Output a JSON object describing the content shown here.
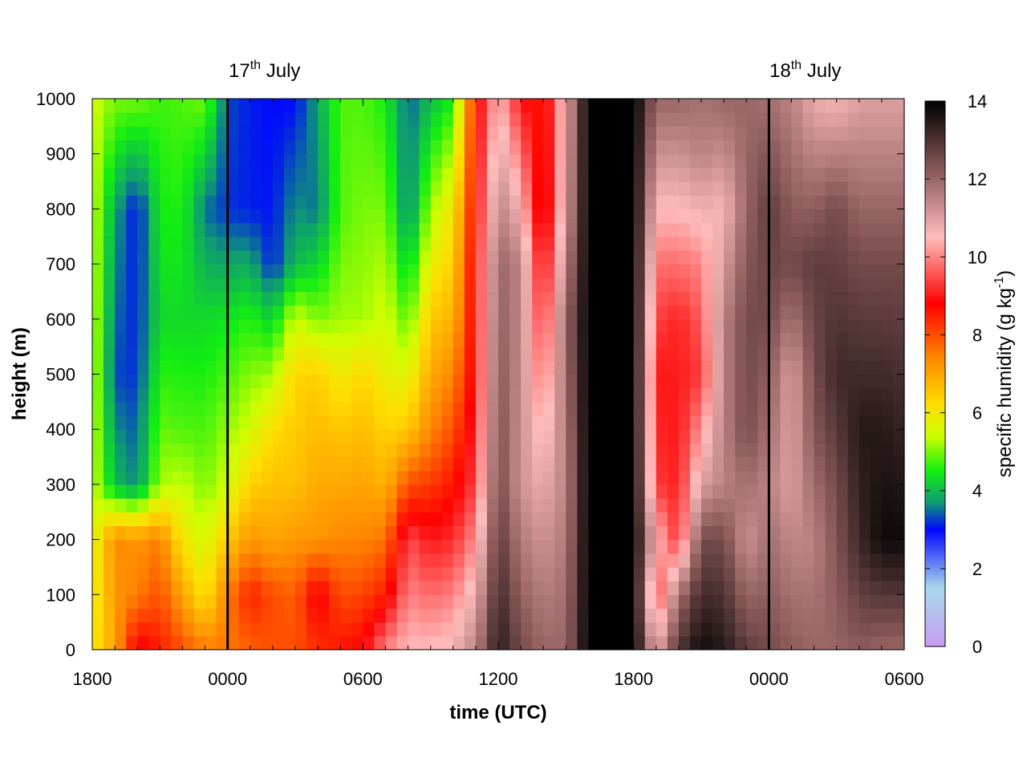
{
  "chart_data": {
    "type": "heatmap",
    "title": "",
    "xlabel": "time (UTC)",
    "ylabel": "height (m)",
    "colorbar_label": "specific humidity (g kg",
    "colorbar_label_exponent": "-1",
    "colorbar_label_suffix": ")",
    "x_ticks": [
      "1800",
      "0000",
      "0600",
      "1200",
      "1800",
      "0000",
      "0600"
    ],
    "x_tick_hours": [
      0,
      6,
      12,
      18,
      24,
      30,
      36
    ],
    "x_range_hours": [
      0,
      36
    ],
    "y_ticks": [
      0,
      100,
      200,
      300,
      400,
      500,
      600,
      700,
      800,
      900,
      1000
    ],
    "ylim": [
      0,
      1000
    ],
    "colorbar_ticks": [
      0,
      2,
      4,
      6,
      8,
      10,
      12,
      14
    ],
    "colorbar_range": [
      0,
      14
    ],
    "day_markers": [
      {
        "label": "17",
        "suffix": "th",
        "month": " July",
        "hour": 6
      },
      {
        "label": "18",
        "suffix": "th",
        "month": " July",
        "hour": 30
      }
    ],
    "colormap": [
      {
        "value": 0,
        "color": "#c89cf2"
      },
      {
        "value": 1.5,
        "color": "#a8d8ec"
      },
      {
        "value": 3.0,
        "color": "#0008ff"
      },
      {
        "value": 3.7,
        "color": "#0f9b72"
      },
      {
        "value": 4.5,
        "color": "#11ee11"
      },
      {
        "value": 5.4,
        "color": "#ccff00"
      },
      {
        "value": 6.2,
        "color": "#ffdd00"
      },
      {
        "value": 7.4,
        "color": "#ff8800"
      },
      {
        "value": 8.8,
        "color": "#ff0000"
      },
      {
        "value": 10.5,
        "color": "#ffbcbc"
      },
      {
        "value": 12.2,
        "color": "#8c5a5a"
      },
      {
        "value": 14,
        "color": "#000000"
      }
    ],
    "time_hours": [
      0,
      1,
      2,
      3,
      4,
      5,
      6,
      7,
      8,
      9,
      10,
      11,
      12,
      13,
      14,
      15,
      16,
      17,
      18,
      19,
      20,
      21,
      22,
      23,
      24,
      25,
      26,
      27,
      28,
      29,
      30,
      31,
      32,
      33,
      34,
      35,
      36
    ],
    "profiles": [
      {
        "t": 0,
        "levels": [
          [
            0,
            6.0
          ],
          [
            200,
            5.5
          ],
          [
            1000,
            5.5
          ]
        ]
      },
      {
        "t": 1,
        "levels": [
          [
            0,
            7.0
          ],
          [
            200,
            7.4
          ],
          [
            300,
            4.0
          ],
          [
            500,
            3.3
          ],
          [
            800,
            3.8
          ],
          [
            1000,
            5.0
          ]
        ]
      },
      {
        "t": 2,
        "levels": [
          [
            0,
            9.0
          ],
          [
            100,
            7.5
          ],
          [
            200,
            7.2
          ],
          [
            300,
            3.6
          ],
          [
            500,
            3.2
          ],
          [
            800,
            3.0
          ],
          [
            1000,
            5.0
          ]
        ]
      },
      {
        "t": 3,
        "levels": [
          [
            0,
            8.5
          ],
          [
            200,
            7.5
          ],
          [
            300,
            5.2
          ],
          [
            600,
            4.3
          ],
          [
            1000,
            4.7
          ]
        ]
      },
      {
        "t": 4,
        "levels": [
          [
            0,
            8.0
          ],
          [
            200,
            6.0
          ],
          [
            400,
            4.8
          ],
          [
            600,
            4.3
          ],
          [
            1000,
            4.8
          ]
        ]
      },
      {
        "t": 5,
        "levels": [
          [
            0,
            7.5
          ],
          [
            100,
            6.0
          ],
          [
            300,
            5.0
          ],
          [
            600,
            4.3
          ],
          [
            800,
            3.5
          ],
          [
            1000,
            5.0
          ]
        ]
      },
      {
        "t": 6,
        "levels": [
          [
            0,
            7.6
          ],
          [
            100,
            7.5
          ],
          [
            300,
            5.5
          ],
          [
            600,
            4.4
          ],
          [
            800,
            3.2
          ],
          [
            1000,
            3.3
          ]
        ]
      },
      {
        "t": 7,
        "levels": [
          [
            0,
            7.8
          ],
          [
            100,
            8.5
          ],
          [
            200,
            7.2
          ],
          [
            400,
            5.5
          ],
          [
            600,
            4.6
          ],
          [
            800,
            3.1
          ],
          [
            1000,
            3.1
          ]
        ]
      },
      {
        "t": 8,
        "levels": [
          [
            0,
            8.0
          ],
          [
            100,
            8.0
          ],
          [
            200,
            7.0
          ],
          [
            400,
            6.2
          ],
          [
            600,
            4.2
          ],
          [
            700,
            3.1
          ],
          [
            1000,
            3.0
          ]
        ]
      },
      {
        "t": 9,
        "levels": [
          [
            0,
            8.0
          ],
          [
            100,
            7.8
          ],
          [
            300,
            6.6
          ],
          [
            500,
            6.3
          ],
          [
            600,
            5.5
          ],
          [
            700,
            4.0
          ],
          [
            1000,
            3.0
          ]
        ]
      },
      {
        "t": 10,
        "levels": [
          [
            0,
            8.3
          ],
          [
            100,
            9.0
          ],
          [
            200,
            7.2
          ],
          [
            500,
            6.4
          ],
          [
            600,
            5.0
          ],
          [
            800,
            3.5
          ],
          [
            1000,
            3.8
          ]
        ]
      },
      {
        "t": 11,
        "levels": [
          [
            0,
            8.6
          ],
          [
            200,
            7.4
          ],
          [
            400,
            6.5
          ],
          [
            600,
            5.2
          ],
          [
            800,
            4.8
          ],
          [
            1000,
            4.8
          ]
        ]
      },
      {
        "t": 12,
        "levels": [
          [
            0,
            8.8
          ],
          [
            200,
            7.4
          ],
          [
            500,
            6.3
          ],
          [
            600,
            5.2
          ],
          [
            1000,
            4.8
          ]
        ]
      },
      {
        "t": 13,
        "levels": [
          [
            0,
            10.0
          ],
          [
            100,
            8.5
          ],
          [
            300,
            6.8
          ],
          [
            500,
            5.8
          ],
          [
            800,
            5.0
          ],
          [
            1000,
            4.5
          ]
        ]
      },
      {
        "t": 14,
        "levels": [
          [
            0,
            10.5
          ],
          [
            200,
            9.5
          ],
          [
            400,
            6.5
          ],
          [
            600,
            4.8
          ],
          [
            800,
            3.5
          ],
          [
            1000,
            3.4
          ]
        ]
      },
      {
        "t": 15,
        "levels": [
          [
            0,
            10.5
          ],
          [
            200,
            9.0
          ],
          [
            400,
            7.4
          ],
          [
            600,
            6.5
          ],
          [
            800,
            5.2
          ],
          [
            1000,
            4.0
          ]
        ]
      },
      {
        "t": 16,
        "levels": [
          [
            0,
            10.7
          ],
          [
            200,
            9.2
          ],
          [
            400,
            8.0
          ],
          [
            600,
            6.8
          ],
          [
            800,
            6.0
          ],
          [
            1000,
            4.5
          ]
        ]
      },
      {
        "t": 17,
        "levels": [
          [
            0,
            11.5
          ],
          [
            300,
            9.4
          ],
          [
            500,
            9.0
          ],
          [
            700,
            9.0
          ],
          [
            1000,
            8.6
          ]
        ]
      },
      {
        "t": 18,
        "levels": [
          [
            0,
            13.5
          ],
          [
            300,
            12.5
          ],
          [
            700,
            12.0
          ],
          [
            1000,
            10.5
          ]
        ]
      },
      {
        "t": 19,
        "levels": [
          [
            0,
            12.5
          ],
          [
            300,
            11.2
          ],
          [
            700,
            11.5
          ],
          [
            1000,
            9.0
          ]
        ]
      },
      {
        "t": 20,
        "levels": [
          [
            0,
            12.0
          ],
          [
            300,
            10.8
          ],
          [
            600,
            9.2
          ],
          [
            800,
            8.2
          ],
          [
            1000,
            8.5
          ]
        ]
      },
      {
        "t": 21,
        "levels": [
          [
            0,
            12.0
          ],
          [
            300,
            11.5
          ],
          [
            600,
            12.0
          ],
          [
            800,
            11.0
          ],
          [
            1000,
            10.8
          ]
        ]
      },
      {
        "t": 22,
        "levels": [
          [
            0,
            14
          ],
          [
            1000,
            14
          ]
        ]
      },
      {
        "t": 23,
        "levels": [
          [
            0,
            14
          ],
          [
            1000,
            14
          ]
        ]
      },
      {
        "t": 24,
        "levels": [
          [
            0,
            14
          ],
          [
            1000,
            14
          ]
        ]
      },
      {
        "t": 25,
        "levels": [
          [
            0,
            10.8
          ],
          [
            100,
            9.2
          ],
          [
            200,
            10.6
          ],
          [
            300,
            9.3
          ],
          [
            500,
            9.0
          ],
          [
            700,
            9.8
          ],
          [
            1000,
            12.0
          ]
        ]
      },
      {
        "t": 26,
        "levels": [
          [
            0,
            13.0
          ],
          [
            100,
            11.8
          ],
          [
            200,
            9.2
          ],
          [
            400,
            9.0
          ],
          [
            600,
            9.1
          ],
          [
            800,
            10.5
          ],
          [
            1000,
            12.0
          ]
        ]
      },
      {
        "t": 27,
        "levels": [
          [
            0,
            13.8
          ],
          [
            200,
            12.5
          ],
          [
            300,
            11.0
          ],
          [
            500,
            9.3
          ],
          [
            700,
            10.0
          ],
          [
            900,
            11.5
          ],
          [
            1000,
            11.8
          ]
        ]
      },
      {
        "t": 28,
        "levels": [
          [
            0,
            13.5
          ],
          [
            200,
            12.5
          ],
          [
            300,
            11.5
          ],
          [
            600,
            11.5
          ],
          [
            800,
            10.6
          ],
          [
            1000,
            12.0
          ]
        ]
      },
      {
        "t": 29,
        "levels": [
          [
            0,
            12.8
          ],
          [
            200,
            11.2
          ],
          [
            400,
            12.5
          ],
          [
            600,
            12.5
          ],
          [
            800,
            12.0
          ],
          [
            1000,
            12.0
          ]
        ]
      },
      {
        "t": 30,
        "levels": [
          [
            0,
            12.5
          ],
          [
            300,
            11.5
          ],
          [
            600,
            12.5
          ],
          [
            800,
            12.8
          ],
          [
            1000,
            11.8
          ]
        ]
      },
      {
        "t": 31,
        "levels": [
          [
            0,
            12.2
          ],
          [
            300,
            11.0
          ],
          [
            500,
            11.0
          ],
          [
            700,
            12.5
          ],
          [
            1000,
            11.5
          ]
        ]
      },
      {
        "t": 32,
        "levels": [
          [
            0,
            12.0
          ],
          [
            200,
            11.5
          ],
          [
            400,
            12.3
          ],
          [
            700,
            12.8
          ],
          [
            1000,
            10.8
          ]
        ]
      },
      {
        "t": 33,
        "levels": [
          [
            0,
            12.0
          ],
          [
            300,
            12.5
          ],
          [
            500,
            13.2
          ],
          [
            800,
            12.5
          ],
          [
            1000,
            10.6
          ]
        ]
      },
      {
        "t": 34,
        "levels": [
          [
            0,
            12.2
          ],
          [
            200,
            13.2
          ],
          [
            400,
            13.5
          ],
          [
            700,
            12.5
          ],
          [
            1000,
            11.0
          ]
        ]
      },
      {
        "t": 35,
        "levels": [
          [
            0,
            12.0
          ],
          [
            200,
            13.8
          ],
          [
            400,
            13.5
          ],
          [
            700,
            12.5
          ],
          [
            1000,
            11.0
          ]
        ]
      },
      {
        "t": 36,
        "levels": [
          [
            0,
            12.0
          ],
          [
            200,
            13.8
          ],
          [
            400,
            13.3
          ],
          [
            700,
            12.5
          ],
          [
            1000,
            11.0
          ]
        ]
      }
    ]
  }
}
